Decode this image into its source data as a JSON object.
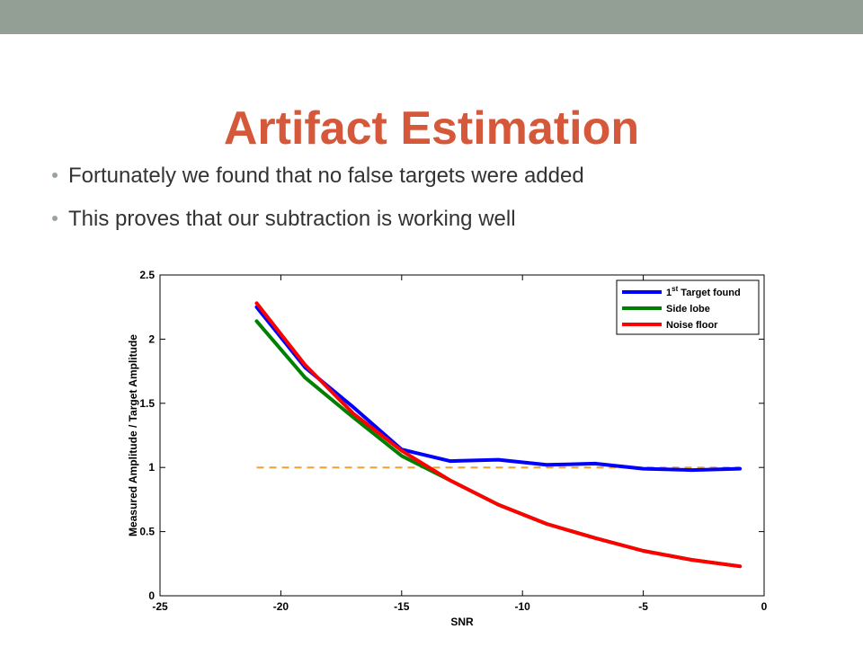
{
  "slide": {
    "title": "Artifact Estimation",
    "bullets": [
      "Fortunately we found that no false targets were added",
      "This proves that our subtraction is working well"
    ],
    "accent_color": "#d5583a",
    "bar_color": "#939e95"
  },
  "chart_data": {
    "type": "line",
    "xlabel": "SNR",
    "ylabel": "Measured Amplitude / Target Amplitude",
    "xlim": [
      -25,
      0
    ],
    "ylim": [
      0,
      2.5
    ],
    "xticks": [
      -25,
      -20,
      -15,
      -10,
      -5,
      0
    ],
    "yticks": [
      0,
      0.5,
      1,
      1.5,
      2,
      2.5
    ],
    "xtick_labels": [
      "-25",
      "-20",
      "-15",
      "-10",
      "-5",
      "0"
    ],
    "ytick_labels": [
      "0",
      "0.5",
      "1",
      "1.5",
      "2",
      "2.5"
    ],
    "grid": false,
    "legend_position": "top-right",
    "series": [
      {
        "name": "1st Target found",
        "legend_main": "1",
        "legend_sup": "st",
        "legend_rest": " Target found",
        "color": "#0000ff",
        "x": [
          -21,
          -19,
          -17,
          -15,
          -13,
          -11,
          -9,
          -7,
          -5,
          -3,
          -1
        ],
        "y": [
          2.25,
          1.78,
          1.47,
          1.14,
          1.05,
          1.06,
          1.02,
          1.03,
          0.99,
          0.98,
          0.99
        ]
      },
      {
        "name": "Side lobe",
        "color": "#008000",
        "x": [
          -21,
          -19,
          -17,
          -15,
          -13,
          -11,
          -9,
          -7,
          -5,
          -3,
          -1
        ],
        "y": [
          2.14,
          1.7,
          1.39,
          1.09,
          0.9,
          0.71,
          0.56,
          0.45,
          0.35,
          0.28,
          0.23
        ]
      },
      {
        "name": "Noise floor",
        "color": "#ff0000",
        "x": [
          -21,
          -19,
          -17,
          -15,
          -13,
          -11,
          -9,
          -7,
          -5,
          -3,
          -1
        ],
        "y": [
          2.28,
          1.8,
          1.42,
          1.13,
          0.9,
          0.71,
          0.56,
          0.45,
          0.35,
          0.28,
          0.23
        ]
      }
    ],
    "reference_line": {
      "y": 1,
      "x": [
        -21,
        -1
      ],
      "color": "#f0a030",
      "style": "dashed"
    }
  }
}
